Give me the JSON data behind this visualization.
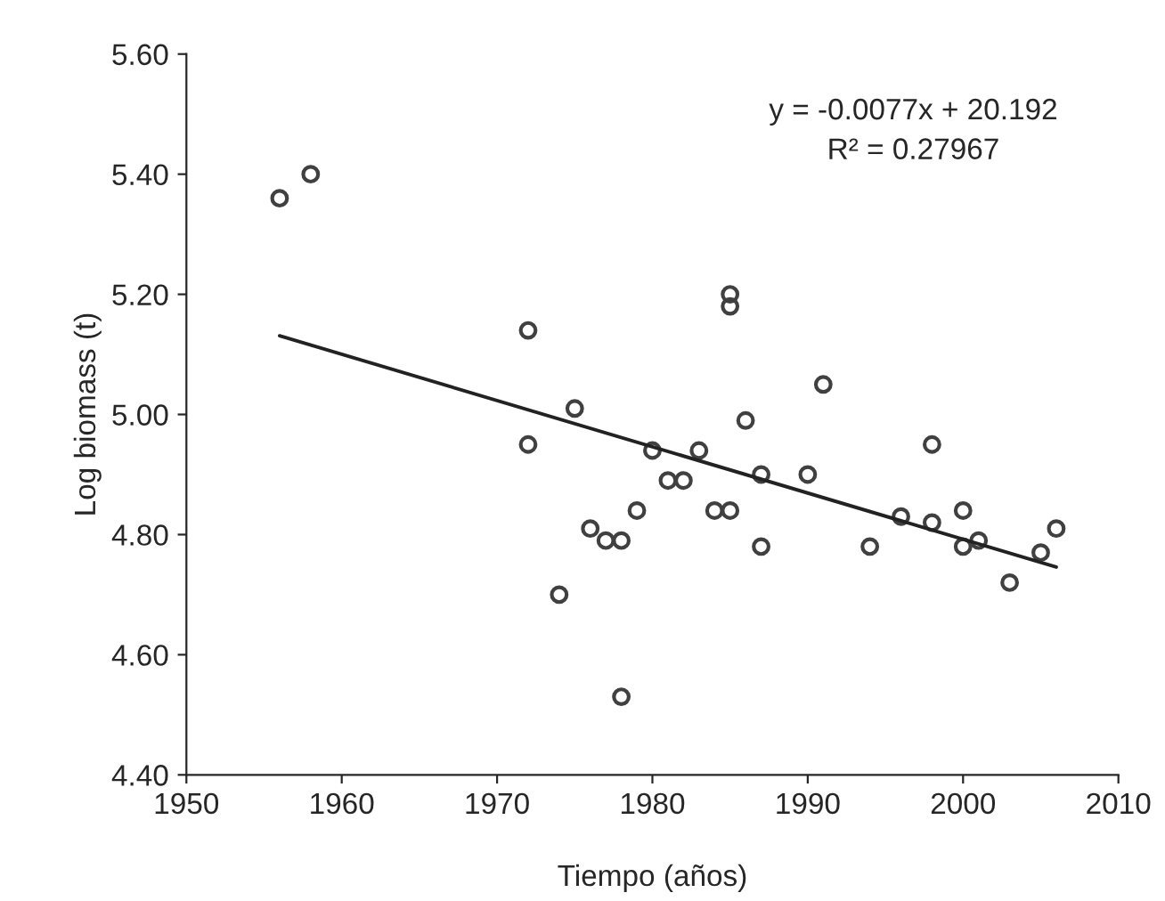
{
  "chart_data": {
    "type": "scatter",
    "xlabel": "Tiempo (años)",
    "ylabel": "Log biomass (t)",
    "annotations": [
      "y = -0.0077x + 20.192",
      "R² = 0.27967"
    ],
    "series": [
      {
        "color": "#404040",
        "marker": "circle",
        "x": [
          1956,
          1958,
          1972,
          1972,
          1975,
          1974,
          1976,
          1977,
          1978,
          1979,
          1978,
          1980,
          1981,
          1982,
          1983,
          1984,
          1985,
          1985,
          1985,
          1986,
          1987,
          1987,
          1990,
          1991,
          1994,
          1996,
          1998,
          1998,
          2000,
          2000,
          2001,
          2003,
          2005,
          2006
        ],
        "values": [
          5.36,
          5.4,
          5.14,
          4.95,
          5.01,
          4.7,
          4.81,
          4.79,
          4.79,
          4.84,
          4.53,
          4.94,
          4.89,
          4.89,
          4.94,
          4.84,
          4.84,
          5.2,
          5.18,
          4.99,
          4.9,
          4.78,
          4.9,
          5.05,
          4.78,
          4.83,
          4.82,
          4.95,
          4.84,
          4.78,
          4.79,
          4.72,
          4.77,
          4.81
        ]
      },
      {
        "type": "line",
        "color": "#222222",
        "x": [
          1956,
          2006
        ],
        "values": [
          5.131,
          4.746
        ]
      }
    ],
    "xlim": [
      1950,
      2010
    ],
    "xticks": [
      1950,
      1960,
      1970,
      1980,
      1990,
      2000,
      2010
    ],
    "ylim": [
      4.4,
      5.6
    ],
    "yticks": [
      {
        "value": 4.4,
        "label": "4.40"
      },
      {
        "value": 4.6,
        "label": "4.60"
      },
      {
        "value": 4.8,
        "label": "4.80"
      },
      {
        "value": 5.0,
        "label": "5.00"
      },
      {
        "value": 5.2,
        "label": "5.20"
      },
      {
        "value": 5.4,
        "label": "5.40"
      },
      {
        "value": 5.6,
        "label": "5.60"
      }
    ],
    "grid": false,
    "legend": false
  }
}
